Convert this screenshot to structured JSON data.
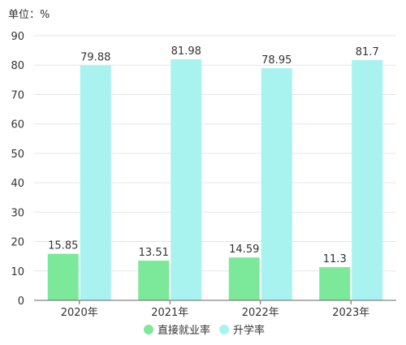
{
  "chart_data": {
    "type": "bar",
    "unit_label": "单位：%",
    "categories": [
      "2020年",
      "2021年",
      "2022年",
      "2023年"
    ],
    "series": [
      {
        "name": "直接就业率",
        "values": [
          15.85,
          13.51,
          14.59,
          11.3
        ],
        "labels": [
          "15.85",
          "13.51",
          "14.59",
          "11.3"
        ],
        "color": "#7ce89a"
      },
      {
        "name": "升学率",
        "values": [
          79.88,
          81.98,
          78.95,
          81.7
        ],
        "labels": [
          "79.88",
          "81.98",
          "78.95",
          "81.7"
        ],
        "color": "#a8f2f0"
      }
    ],
    "ylim": [
      0,
      90
    ],
    "yticks": [
      0,
      10,
      20,
      30,
      40,
      50,
      60,
      70,
      80,
      90
    ],
    "grid": true,
    "legend_position": "bottom-center",
    "title": "",
    "xlabel": "",
    "ylabel": ""
  }
}
